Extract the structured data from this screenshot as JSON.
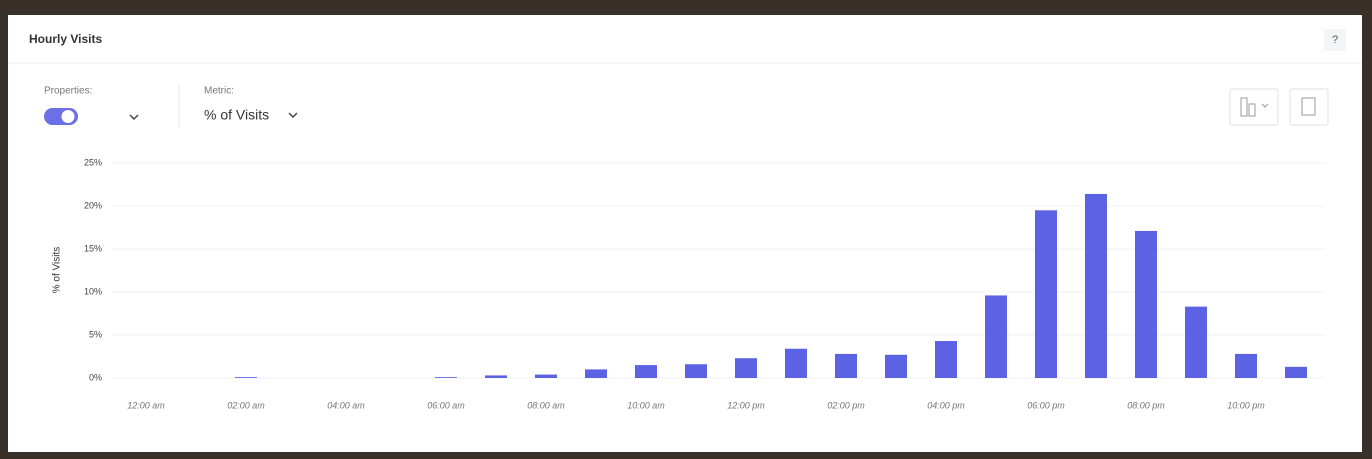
{
  "widget": {
    "title": "Hourly Visits",
    "help": "?",
    "properties_label": "Properties:",
    "metric_label": "Metric:",
    "metric_value": "% of Visits"
  },
  "chart_data": {
    "type": "bar",
    "y_label": "% of Visits",
    "categories": [
      "12:00 am",
      null,
      "02:00 am",
      null,
      "04:00 am",
      null,
      "06:00 am",
      null,
      "08:00 am",
      null,
      "10:00 am",
      null,
      "12:00 pm",
      null,
      "02:00 pm",
      null,
      "04:00 pm",
      null,
      "06:00 pm",
      null,
      "08:00 pm",
      null,
      "10:00 pm",
      null
    ],
    "values": [
      0,
      0,
      0.1,
      0,
      0,
      0,
      0.1,
      0.3,
      0.4,
      1.0,
      1.5,
      1.6,
      2.3,
      3.4,
      2.8,
      2.7,
      4.3,
      9.6,
      19.5,
      21.4,
      17.1,
      8.3,
      2.8,
      1.3
    ],
    "color": "#5c62e4",
    "ylim": [
      0,
      25
    ],
    "yticks": [
      {
        "value": 0,
        "label": "0%"
      },
      {
        "value": 5,
        "label": "5%"
      },
      {
        "value": 10,
        "label": "10%"
      },
      {
        "value": 15,
        "label": "15%"
      },
      {
        "value": 20,
        "label": "20%"
      },
      {
        "value": 25,
        "label": "25%"
      }
    ],
    "grid": true
  }
}
